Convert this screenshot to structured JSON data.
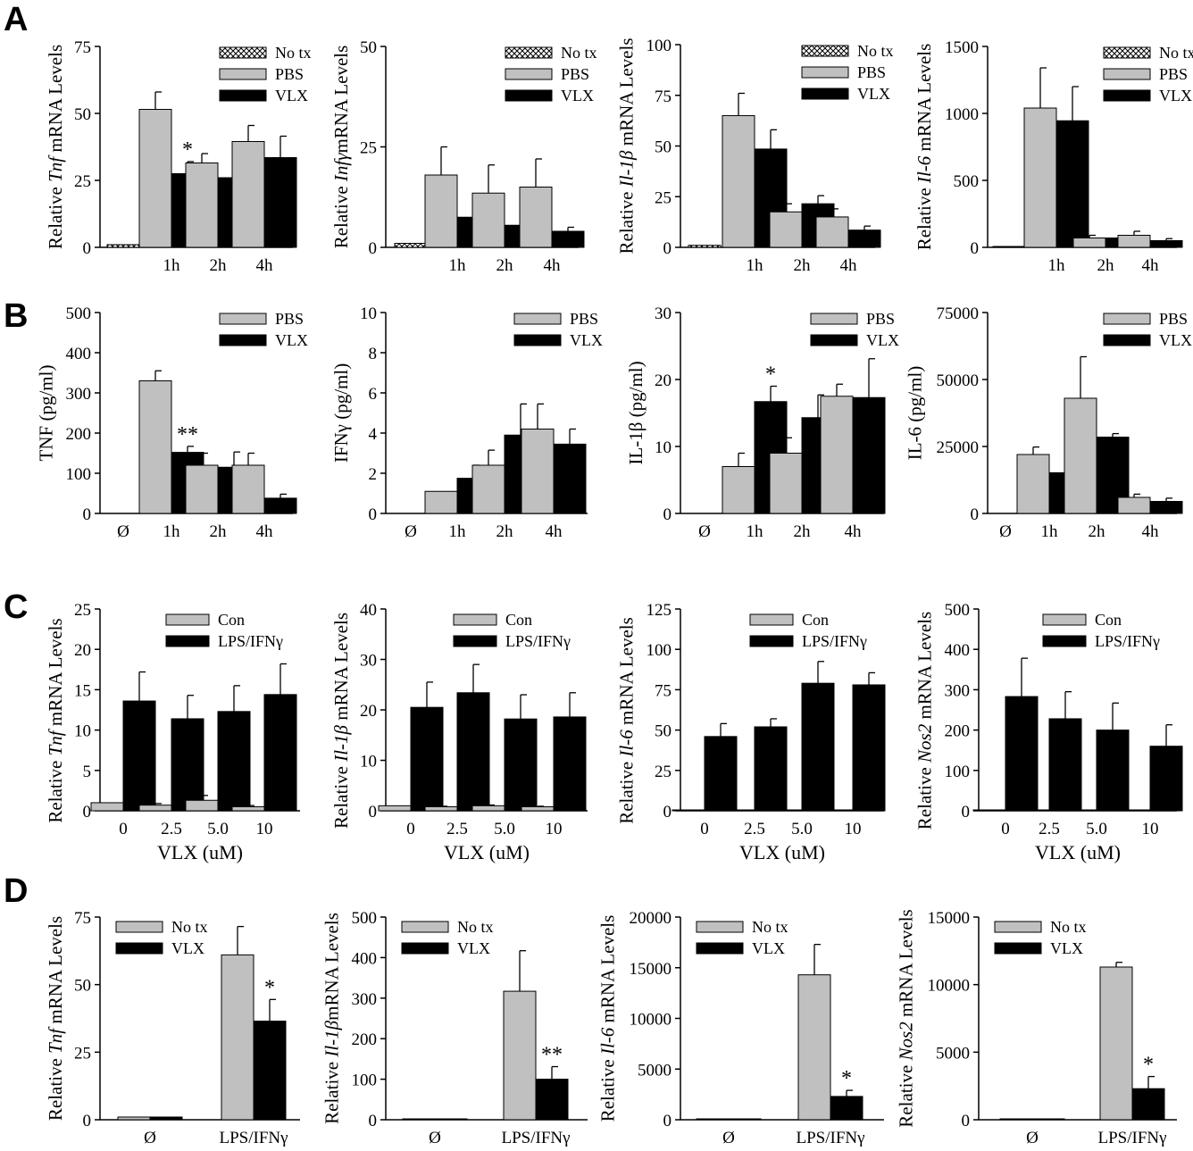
{
  "figure": {
    "panel_labels": [
      "A",
      "B",
      "C",
      "D"
    ]
  },
  "chart_data": [
    {
      "id": "A1",
      "panel": 0,
      "type": "bar",
      "categories": [
        "",
        "1h",
        "2h",
        "4h"
      ],
      "ylabel_parts": [
        "Relative ",
        "Tnf",
        " mRNA Levels"
      ],
      "ylim": [
        0,
        75
      ],
      "yticks": [
        "0",
        "25",
        "50",
        "75"
      ],
      "legend": "top-right",
      "series": [
        {
          "name": "No tx",
          "style": "hatch",
          "values": [
            1,
            null,
            null,
            null
          ],
          "errors": [
            0,
            null,
            null,
            null
          ]
        },
        {
          "name": "PBS",
          "style": "gray",
          "values": [
            null,
            51.5,
            31.5,
            39.5
          ],
          "errors": [
            null,
            6.5,
            3.5,
            6
          ]
        },
        {
          "name": "VLX",
          "style": "black",
          "values": [
            null,
            27.5,
            26,
            33.5
          ],
          "errors": [
            null,
            4.5,
            5,
            8
          ]
        }
      ],
      "annotations": [
        {
          "series": 2,
          "category": 1,
          "text": "*"
        }
      ]
    },
    {
      "id": "A2",
      "panel": 0,
      "type": "bar",
      "categories": [
        "",
        "1h",
        "2h",
        "4h"
      ],
      "ylabel_parts": [
        "Relative ",
        "Infγ",
        "mRNA Levels"
      ],
      "ylim": [
        0,
        50
      ],
      "yticks": [
        "0",
        "25",
        "50"
      ],
      "legend": "top-right",
      "series": [
        {
          "name": "No tx",
          "style": "hatch",
          "values": [
            1,
            null,
            null,
            null
          ],
          "errors": [
            0,
            null,
            null,
            null
          ]
        },
        {
          "name": "PBS",
          "style": "gray",
          "values": [
            null,
            18,
            13.5,
            15
          ],
          "errors": [
            null,
            7,
            7,
            7
          ]
        },
        {
          "name": "VLX",
          "style": "black",
          "values": [
            null,
            7.5,
            5.5,
            4
          ],
          "errors": [
            null,
            3,
            2.5,
            1
          ]
        }
      ],
      "annotations": []
    },
    {
      "id": "A3",
      "panel": 0,
      "type": "bar",
      "categories": [
        "",
        "1h",
        "2h",
        "4h"
      ],
      "ylabel_parts": [
        "Relative ",
        "Il-1β",
        " mRNA Levels"
      ],
      "ylim": [
        0,
        100
      ],
      "yticks": [
        "0",
        "25",
        "50",
        "75",
        "100"
      ],
      "legend": "top-right",
      "series": [
        {
          "name": "No tx",
          "style": "hatch",
          "values": [
            1,
            null,
            null,
            null
          ],
          "errors": [
            0,
            null,
            null,
            null
          ]
        },
        {
          "name": "PBS",
          "style": "gray",
          "values": [
            null,
            65,
            17.5,
            15
          ],
          "errors": [
            null,
            11,
            4,
            4
          ]
        },
        {
          "name": "VLX",
          "style": "black",
          "values": [
            null,
            48.5,
            21.5,
            8.5
          ],
          "errors": [
            null,
            9.5,
            4,
            2
          ]
        }
      ],
      "annotations": []
    },
    {
      "id": "A4",
      "panel": 0,
      "type": "bar",
      "categories": [
        "",
        "1h",
        "2h",
        "4h"
      ],
      "ylabel_parts": [
        "Relative ",
        "Il-6",
        " mRNA Levels"
      ],
      "ylim": [
        0,
        1500
      ],
      "yticks": [
        "0",
        "500",
        "1000",
        "1500"
      ],
      "legend": "top-right",
      "series": [
        {
          "name": "No tx",
          "style": "hatch",
          "values": [
            1,
            null,
            null,
            null
          ],
          "errors": [
            0,
            null,
            null,
            null
          ]
        },
        {
          "name": "PBS",
          "style": "gray",
          "values": [
            null,
            1040,
            70,
            90
          ],
          "errors": [
            null,
            300,
            20,
            30
          ]
        },
        {
          "name": "VLX",
          "style": "black",
          "values": [
            null,
            945,
            70,
            50
          ],
          "errors": [
            null,
            255,
            15,
            15
          ]
        }
      ],
      "annotations": []
    },
    {
      "id": "B1",
      "panel": 1,
      "type": "bar",
      "categories": [
        "Ø",
        "1h",
        "2h",
        "4h"
      ],
      "ylabel_parts": [
        "TNF (pg/ml)"
      ],
      "ylim": [
        0,
        500
      ],
      "yticks": [
        "0",
        "100",
        "200",
        "300",
        "400",
        "500"
      ],
      "legend": "top-right",
      "series": [
        {
          "name": "PBS",
          "style": "gray",
          "values": [
            null,
            330,
            120,
            120
          ],
          "errors": [
            null,
            25,
            30,
            30
          ]
        },
        {
          "name": "VLX",
          "style": "black",
          "values": [
            null,
            152,
            115,
            38
          ],
          "errors": [
            null,
            15,
            38,
            10
          ]
        }
      ],
      "annotations": [
        {
          "series": 1,
          "category": 1,
          "text": "**"
        }
      ]
    },
    {
      "id": "B2",
      "panel": 1,
      "type": "bar",
      "categories": [
        "Ø",
        "1h",
        "2h",
        "4h"
      ],
      "ylabel_parts": [
        "IFNγ (pg/ml)"
      ],
      "ylim": [
        0,
        10
      ],
      "yticks": [
        "0",
        "2",
        "4",
        "6",
        "8",
        "10"
      ],
      "legend": "top-right",
      "series": [
        {
          "name": "PBS",
          "style": "gray",
          "values": [
            null,
            1.1,
            2.4,
            4.2
          ],
          "errors": [
            null,
            0,
            0.75,
            1.25
          ]
        },
        {
          "name": "VLX",
          "style": "black",
          "values": [
            null,
            1.75,
            3.9,
            3.45
          ],
          "errors": [
            null,
            0.65,
            1.55,
            0.75
          ]
        }
      ],
      "annotations": []
    },
    {
      "id": "B3",
      "panel": 1,
      "type": "bar",
      "categories": [
        "Ø",
        "1h",
        "2h",
        "4h"
      ],
      "ylabel_parts": [
        "IL-1β (pg/ml)"
      ],
      "ylim": [
        0,
        30
      ],
      "yticks": [
        "0",
        "10",
        "20",
        "30"
      ],
      "legend": "top-right",
      "series": [
        {
          "name": "PBS",
          "style": "gray",
          "values": [
            null,
            7,
            9,
            17.5
          ],
          "errors": [
            null,
            2,
            2.3,
            1.8
          ]
        },
        {
          "name": "VLX",
          "style": "black",
          "values": [
            null,
            16.7,
            14.3,
            17.3
          ],
          "errors": [
            null,
            2.3,
            3.4,
            5.8
          ]
        }
      ],
      "annotations": [
        {
          "series": 1,
          "category": 1,
          "text": "*"
        }
      ]
    },
    {
      "id": "B4",
      "panel": 1,
      "type": "bar",
      "categories": [
        "Ø",
        "1h",
        "2h",
        "4h"
      ],
      "ylabel_parts": [
        "IL-6 (pg/ml)"
      ],
      "ylim": [
        0,
        75000
      ],
      "yticks": [
        "0",
        "25000",
        "50000",
        "75000"
      ],
      "legend": "top-right",
      "series": [
        {
          "name": "PBS",
          "style": "gray",
          "values": [
            null,
            22000,
            43000,
            6000
          ],
          "errors": [
            null,
            2800,
            15500,
            1200
          ]
        },
        {
          "name": "VLX",
          "style": "black",
          "values": [
            null,
            15200,
            28500,
            4500
          ],
          "errors": [
            null,
            1200,
            1300,
            1200
          ]
        }
      ],
      "annotations": []
    },
    {
      "id": "C1",
      "panel": 2,
      "type": "bar",
      "categories": [
        "0",
        "2.5",
        "5.0",
        "10"
      ],
      "xlabel": "VLX (uM)",
      "ylabel_parts": [
        "Relative ",
        "Tnf",
        " mRNA Levels"
      ],
      "ylim": [
        0,
        25
      ],
      "yticks": [
        "0",
        "5",
        "10",
        "15",
        "20",
        "25"
      ],
      "legend": "top-right",
      "series": [
        {
          "name": "Con",
          "style": "gray",
          "values": [
            1,
            0.7,
            1.3,
            0.5
          ],
          "errors": [
            0,
            0.2,
            0.6,
            0.15
          ]
        },
        {
          "name": "LPS/IFNγ",
          "style": "black",
          "values": [
            13.6,
            11.4,
            12.3,
            14.4
          ],
          "errors": [
            3.6,
            2.9,
            3.2,
            3.8
          ]
        }
      ],
      "annotations": []
    },
    {
      "id": "C2",
      "panel": 2,
      "type": "bar",
      "categories": [
        "0",
        "2.5",
        "5.0",
        "10"
      ],
      "xlabel": "VLX (uM)",
      "ylabel_parts": [
        "Relative ",
        "Il-1β",
        " mRNA Levels"
      ],
      "ylim": [
        0,
        40
      ],
      "yticks": [
        "0",
        "10",
        "20",
        "30",
        "40"
      ],
      "legend": "top-right",
      "series": [
        {
          "name": "Con",
          "style": "gray",
          "values": [
            1,
            0.8,
            1,
            0.8
          ],
          "errors": [
            0,
            0.1,
            0.15,
            0.1
          ]
        },
        {
          "name": "LPS/IFNγ",
          "style": "black",
          "values": [
            20.5,
            23.4,
            18.2,
            18.6
          ],
          "errors": [
            5,
            5.6,
            4.8,
            4.8
          ]
        }
      ],
      "annotations": []
    },
    {
      "id": "C3",
      "panel": 2,
      "type": "bar",
      "categories": [
        "0",
        "2.5",
        "5.0",
        "10"
      ],
      "xlabel": "VLX (uM)",
      "ylabel_parts": [
        "Relative ",
        "Il-6",
        " mRNA Levels"
      ],
      "ylim": [
        0,
        125
      ],
      "yticks": [
        "0",
        "25",
        "50",
        "75",
        "100",
        "125"
      ],
      "legend": "top-right",
      "series": [
        {
          "name": "Con",
          "style": "gray",
          "values": [
            0.5,
            0.5,
            0.5,
            0.5
          ],
          "errors": [
            0,
            0,
            0,
            0
          ]
        },
        {
          "name": "LPS/IFNγ",
          "style": "black",
          "values": [
            46,
            52,
            79,
            78
          ],
          "errors": [
            8,
            5,
            13.5,
            7.5
          ]
        }
      ],
      "annotations": []
    },
    {
      "id": "C4",
      "panel": 2,
      "type": "bar",
      "categories": [
        "0",
        "2.5",
        "5.0",
        "10"
      ],
      "xlabel": "VLX (uM)",
      "ylabel_parts": [
        "Relative ",
        "Nos2",
        " mRNA Levels"
      ],
      "ylim": [
        0,
        500
      ],
      "yticks": [
        "0",
        "100",
        "200",
        "300",
        "400",
        "500"
      ],
      "legend": "top-right",
      "series": [
        {
          "name": "Con",
          "style": "gray",
          "values": [
            1,
            1,
            1,
            1
          ],
          "errors": [
            0,
            0,
            0,
            0
          ]
        },
        {
          "name": "LPS/IFNγ",
          "style": "black",
          "values": [
            283,
            228,
            200,
            160
          ],
          "errors": [
            95,
            67,
            67,
            53
          ]
        }
      ],
      "annotations": []
    },
    {
      "id": "D1",
      "panel": 3,
      "type": "bar",
      "categories": [
        "Ø",
        "LPS/IFNγ"
      ],
      "ylabel_parts": [
        "Relative ",
        "Tnf",
        " mRNA Levels"
      ],
      "ylim": [
        0,
        75
      ],
      "yticks": [
        "0",
        "25",
        "50",
        "75"
      ],
      "legend": "top-left",
      "series": [
        {
          "name": "No tx",
          "style": "gray",
          "values": [
            1,
            61
          ],
          "errors": [
            0,
            10.5
          ]
        },
        {
          "name": "VLX",
          "style": "black",
          "values": [
            1,
            36.5
          ],
          "errors": [
            0,
            8
          ]
        }
      ],
      "annotations": [
        {
          "series": 1,
          "category": 1,
          "text": "*"
        }
      ]
    },
    {
      "id": "D2",
      "panel": 3,
      "type": "bar",
      "categories": [
        "Ø",
        "LPS/IFNγ"
      ],
      "ylabel_parts": [
        "Relative ",
        "Il-1β",
        "mRNA Levels"
      ],
      "ylim": [
        0,
        500
      ],
      "yticks": [
        "0",
        "100",
        "200",
        "300",
        "400",
        "500"
      ],
      "legend": "top-left",
      "series": [
        {
          "name": "No tx",
          "style": "gray",
          "values": [
            1,
            317
          ],
          "errors": [
            0,
            100
          ]
        },
        {
          "name": "VLX",
          "style": "black",
          "values": [
            2,
            100
          ],
          "errors": [
            0,
            31
          ]
        }
      ],
      "annotations": [
        {
          "series": 1,
          "category": 1,
          "text": "**"
        }
      ]
    },
    {
      "id": "D3",
      "panel": 3,
      "type": "bar",
      "categories": [
        "Ø",
        "LPS/IFNγ"
      ],
      "ylabel_parts": [
        "Relative ",
        "Il-6",
        " mRNA Levels"
      ],
      "ylim": [
        0,
        20000
      ],
      "yticks": [
        "0",
        "5000",
        "10000",
        "15000",
        "20000"
      ],
      "legend": "top-left",
      "series": [
        {
          "name": "No tx",
          "style": "gray",
          "values": [
            10,
            14300
          ],
          "errors": [
            0,
            3000
          ]
        },
        {
          "name": "VLX",
          "style": "black",
          "values": [
            10,
            2300
          ],
          "errors": [
            0,
            600
          ]
        }
      ],
      "annotations": [
        {
          "series": 1,
          "category": 1,
          "text": "*"
        }
      ]
    },
    {
      "id": "D4",
      "panel": 3,
      "type": "bar",
      "categories": [
        "Ø",
        "LPS/IFNγ"
      ],
      "ylabel_parts": [
        "Relative ",
        "Nos2",
        " mRNA Levels"
      ],
      "ylim": [
        0,
        15000
      ],
      "yticks": [
        "0",
        "5000",
        "10000",
        "15000"
      ],
      "legend": "top-left",
      "series": [
        {
          "name": "No tx",
          "style": "gray",
          "values": [
            10,
            11300
          ],
          "errors": [
            0,
            350
          ]
        },
        {
          "name": "VLX",
          "style": "black",
          "values": [
            10,
            2300
          ],
          "errors": [
            0,
            900
          ]
        }
      ],
      "annotations": [
        {
          "series": 1,
          "category": 1,
          "text": "*"
        }
      ]
    }
  ]
}
